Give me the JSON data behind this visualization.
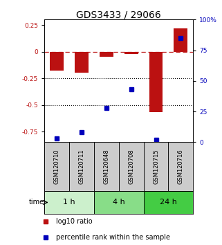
{
  "title": "GDS3433 / 29066",
  "samples": [
    "GSM120710",
    "GSM120711",
    "GSM120648",
    "GSM120708",
    "GSM120715",
    "GSM120716"
  ],
  "log10_ratio": [
    -0.18,
    -0.2,
    -0.05,
    -0.02,
    -0.57,
    0.22
  ],
  "percentile_rank": [
    3,
    8,
    28,
    43,
    2,
    85
  ],
  "time_groups": [
    {
      "label": "1 h",
      "start": 0,
      "end": 2,
      "color": "#ccf0cc"
    },
    {
      "label": "4 h",
      "start": 2,
      "end": 4,
      "color": "#88dd88"
    },
    {
      "label": "24 h",
      "start": 4,
      "end": 6,
      "color": "#44cc44"
    }
  ],
  "bar_color": "#bb1111",
  "dot_color": "#0000bb",
  "ylim_left": [
    -0.85,
    0.3
  ],
  "ylim_right": [
    0,
    100
  ],
  "yticks_left": [
    -0.75,
    -0.5,
    -0.25,
    0,
    0.25
  ],
  "yticks_right": [
    0,
    25,
    50,
    75,
    100
  ],
  "hlines": [
    -0.25,
    -0.5
  ],
  "background_color": "#ffffff",
  "sample_box_color": "#cccccc",
  "title_fontsize": 10,
  "tick_fontsize": 6.5,
  "label_fontsize": 7,
  "legend_fontsize": 7,
  "sample_fontsize": 6
}
